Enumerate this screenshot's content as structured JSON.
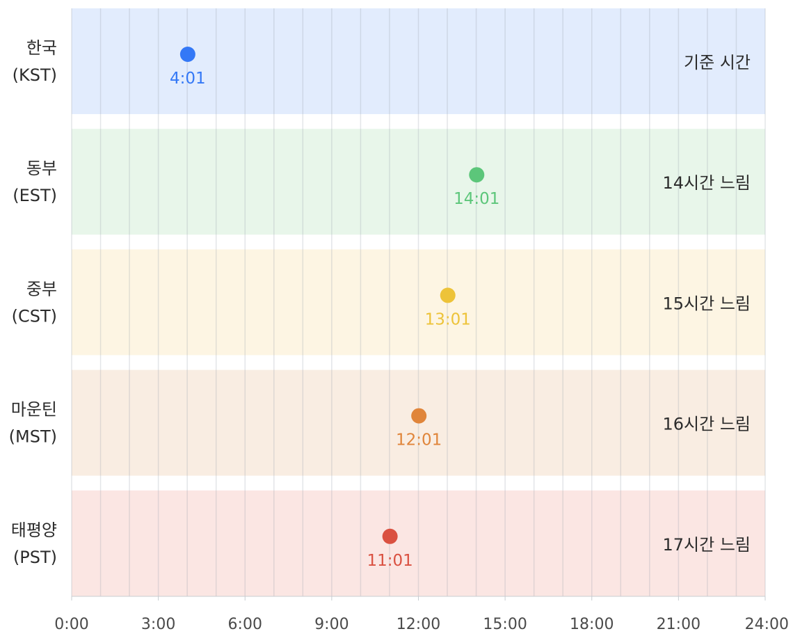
{
  "chart_data": {
    "type": "scatter",
    "title": "",
    "xlabel": "",
    "ylabel": "",
    "xlim": [
      0,
      24
    ],
    "x_ticks": [
      "0:00",
      "3:00",
      "6:00",
      "9:00",
      "12:00",
      "15:00",
      "18:00",
      "21:00",
      "24:00"
    ],
    "grid": "vertical lines every hour",
    "legend": "none",
    "rows": [
      {
        "name": "한국",
        "code": "(KST)",
        "value": 4.0167,
        "time_label": "4:01",
        "note": "기준 시간",
        "color": "#3478F6",
        "band_color": "#E2ECFD"
      },
      {
        "name": "동부",
        "code": "(EST)",
        "value": 14.0167,
        "time_label": "14:01",
        "note": "14시간 느림",
        "color": "#5CC67A",
        "band_color": "#E8F6EA"
      },
      {
        "name": "중부",
        "code": "(CST)",
        "value": 13.0167,
        "time_label": "13:01",
        "note": "15시간 느림",
        "color": "#EDC339",
        "band_color": "#FDF5E3"
      },
      {
        "name": "마운틴",
        "code": "(MST)",
        "value": 12.0167,
        "time_label": "12:01",
        "note": "16시간 느림",
        "color": "#E0853A",
        "band_color": "#F9EDE2"
      },
      {
        "name": "태평양",
        "code": "(PST)",
        "value": 11.0167,
        "time_label": "11:01",
        "note": "17시간 느림",
        "color": "#DA5141",
        "band_color": "#FBE6E3"
      }
    ]
  }
}
